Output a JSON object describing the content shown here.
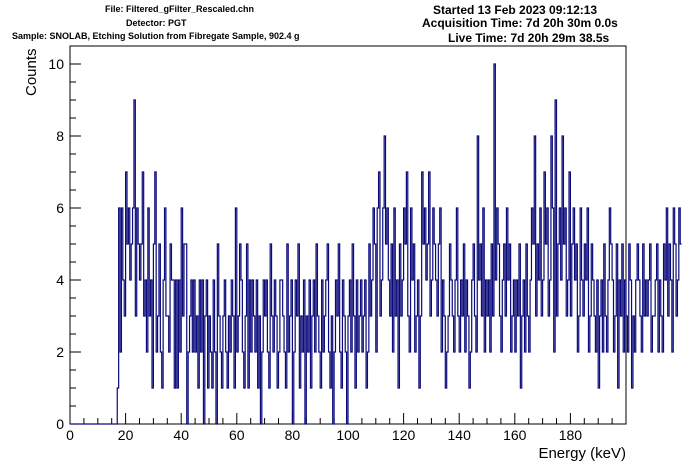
{
  "header": {
    "file": "File: Filtered_gFilter_Rescaled.chn",
    "detector": "Detector: PGT",
    "sample": "Sample: SNOLAB, Etching Solution from Fibregate Sample, 902.4 g",
    "started": "Started 13 Feb 2023 09:12:13",
    "acquisition": "Acquisition Time: 7d 20h 30m 0.0s",
    "live": "Live Time: 7d 20h 29m 38.5s"
  },
  "colors": {
    "line": "#0a0a7a",
    "axis": "#000000"
  },
  "chart_data": {
    "type": "histogram",
    "xlabel": "Energy (keV)",
    "ylabel": "Counts",
    "xlim": [
      0,
      200
    ],
    "ylim": [
      0,
      10.5
    ],
    "bin_width": 0.5,
    "xticks": [
      "0",
      "20",
      "40",
      "60",
      "80",
      "100",
      "120",
      "140",
      "160",
      "180"
    ],
    "yticks": [
      "0",
      "2",
      "4",
      "6",
      "8",
      "10"
    ],
    "x_start": 0,
    "values": [
      0,
      0,
      0,
      0,
      0,
      0,
      0,
      0,
      0,
      0,
      0,
      0,
      0,
      0,
      0,
      0,
      0,
      0,
      0,
      0,
      0,
      0,
      0,
      0,
      0,
      0,
      0,
      0,
      0,
      0,
      0,
      0,
      0,
      0,
      1,
      6,
      2,
      6,
      4,
      3,
      7,
      5,
      6,
      4,
      5,
      6,
      9,
      3,
      6,
      5,
      4,
      5,
      7,
      3,
      4,
      2,
      6,
      3,
      4,
      1,
      5,
      7,
      2,
      3,
      5,
      2,
      1,
      4,
      6,
      3,
      3,
      2,
      5,
      4,
      4,
      1,
      4,
      1,
      4,
      2,
      6,
      3,
      5,
      5,
      0,
      2,
      3,
      4,
      2,
      4,
      2,
      3,
      1,
      4,
      2,
      4,
      0,
      3,
      4,
      1,
      3,
      2,
      1,
      4,
      2,
      0,
      5,
      3,
      2,
      1,
      3,
      4,
      2,
      1,
      3,
      2,
      4,
      3,
      1,
      6,
      2,
      3,
      5,
      4,
      2,
      1,
      3,
      5,
      1,
      4,
      2,
      4,
      3,
      2,
      4,
      1,
      3,
      0,
      2,
      4,
      3,
      4,
      2,
      1,
      5,
      3,
      2,
      4,
      3,
      1,
      2,
      4,
      4,
      3,
      2,
      1,
      5,
      2,
      3,
      4,
      0,
      2,
      4,
      3,
      5,
      1,
      3,
      2,
      4,
      0,
      3,
      2,
      4,
      1,
      3,
      4,
      2,
      5,
      3,
      2,
      1,
      4,
      2,
      3,
      4,
      5,
      2,
      1,
      3,
      0,
      2,
      4,
      3,
      5,
      2,
      1,
      4,
      3,
      2,
      0,
      3,
      4,
      2,
      5,
      3,
      1,
      4,
      2,
      3,
      4,
      2,
      3,
      4,
      1,
      2,
      5,
      3,
      4,
      6,
      5,
      2,
      6,
      7,
      3,
      4,
      6,
      8,
      5,
      6,
      4,
      3,
      5,
      2,
      6,
      3,
      4,
      1,
      5,
      3,
      4,
      6,
      5,
      7,
      3,
      2,
      6,
      4,
      5,
      2,
      3,
      4,
      1,
      3,
      7,
      5,
      6,
      4,
      5,
      7,
      3,
      4,
      6,
      5,
      4,
      3,
      5,
      6,
      2,
      4,
      3,
      1,
      2,
      3,
      5,
      4,
      3,
      2,
      4,
      6,
      3,
      2,
      4,
      3,
      5,
      2,
      4,
      3,
      1,
      2,
      4,
      5,
      3,
      2,
      8,
      4,
      5,
      3,
      6,
      2,
      4,
      3,
      4,
      2,
      5,
      3,
      10,
      4,
      6,
      5,
      3,
      2,
      4,
      5,
      3,
      6,
      4,
      5,
      2,
      3,
      4,
      2,
      4,
      3,
      5,
      1,
      3,
      4,
      2,
      5,
      3,
      2,
      4,
      6,
      5,
      8,
      3,
      5,
      4,
      6,
      3,
      4,
      7,
      5,
      6,
      3,
      4,
      8,
      6,
      2,
      9,
      3,
      5,
      6,
      4,
      8,
      5,
      6,
      3,
      4,
      7,
      3,
      5,
      6,
      4,
      5,
      2,
      3,
      6,
      4,
      3,
      5,
      4,
      6,
      2,
      3,
      5,
      4,
      3,
      2,
      4,
      1,
      3,
      4,
      2,
      5,
      3,
      2,
      4,
      6,
      5,
      4,
      2,
      3,
      5,
      1,
      4,
      3,
      5,
      2,
      4,
      3,
      2,
      5,
      4,
      1,
      3,
      2,
      4,
      5,
      4,
      3,
      2,
      5,
      3,
      4,
      3,
      4,
      5,
      2,
      3,
      3,
      4,
      5,
      2,
      4,
      3,
      2,
      5,
      4,
      6,
      3,
      5,
      4,
      2,
      6,
      5,
      3,
      4,
      6,
      5
    ]
  }
}
